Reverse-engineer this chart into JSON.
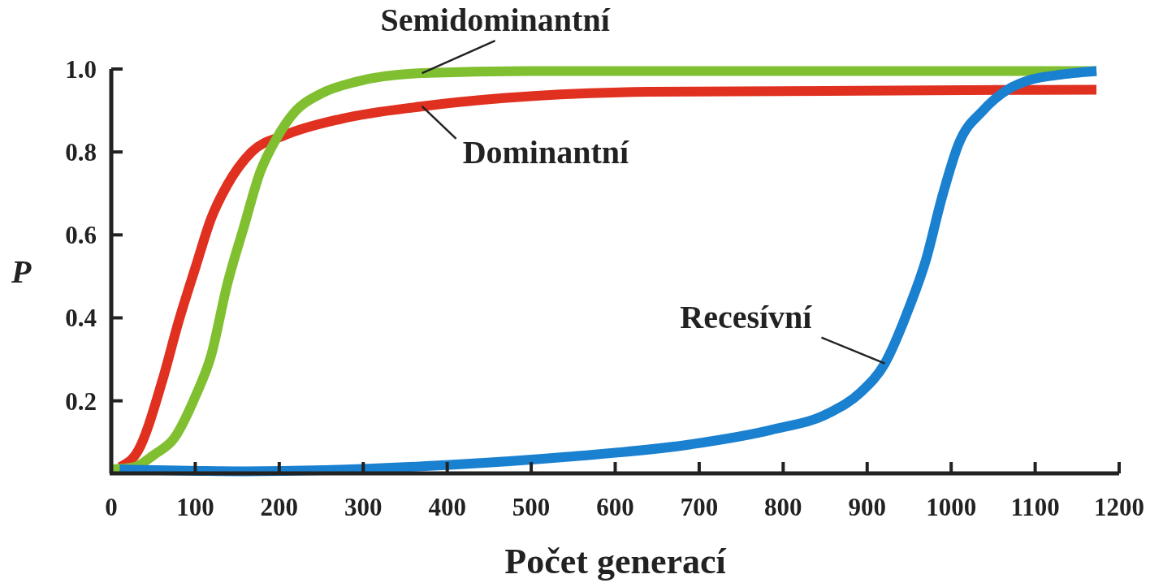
{
  "chart_data": {
    "type": "line",
    "xlabel": "Počet generací",
    "ylabel": "P",
    "xlim": [
      0,
      1200
    ],
    "ylim": [
      0.025,
      1.0
    ],
    "xticks": [
      0,
      100,
      200,
      300,
      400,
      500,
      600,
      700,
      800,
      900,
      1000,
      1100,
      1200
    ],
    "yticks": [
      0.2,
      0.4,
      0.6,
      0.8,
      {
        "value": 1,
        "label": "1.0"
      }
    ],
    "grid": false,
    "line_style": "solid",
    "series": [
      {
        "name": "Dominantní",
        "color": "#e03020",
        "x": [
          10,
          32,
          61,
          80,
          100,
          119,
          138,
          167,
          206,
          274,
          370,
          467,
          641,
          1173
        ],
        "values": [
          0.04,
          0.08,
          0.25,
          0.39,
          0.52,
          0.64,
          0.72,
          0.8,
          0.84,
          0.88,
          0.91,
          0.93,
          0.945,
          0.95
        ]
      },
      {
        "name": "Semidominantní",
        "color": "#80c030",
        "x": [
          0,
          27,
          51,
          75,
          100,
          119,
          138,
          158,
          177,
          196,
          220,
          249,
          293,
          370,
          496,
          1173
        ],
        "values": [
          0.035,
          0.04,
          0.07,
          0.11,
          0.21,
          0.31,
          0.48,
          0.62,
          0.75,
          0.83,
          0.9,
          0.94,
          0.97,
          0.99,
          0.995,
          0.995
        ]
      },
      {
        "name": "Recesívní",
        "color": "#1a80d0",
        "x": [
          10,
          158,
          399,
          544,
          690,
          786,
          854,
          892,
          921,
          950,
          970,
          989,
          1009,
          1038,
          1067,
          1096,
          1125,
          1173
        ],
        "values": [
          0.035,
          0.03,
          0.045,
          0.065,
          0.095,
          0.13,
          0.17,
          0.22,
          0.29,
          0.425,
          0.54,
          0.69,
          0.82,
          0.9,
          0.95,
          0.975,
          0.985,
          0.995
        ]
      }
    ]
  }
}
